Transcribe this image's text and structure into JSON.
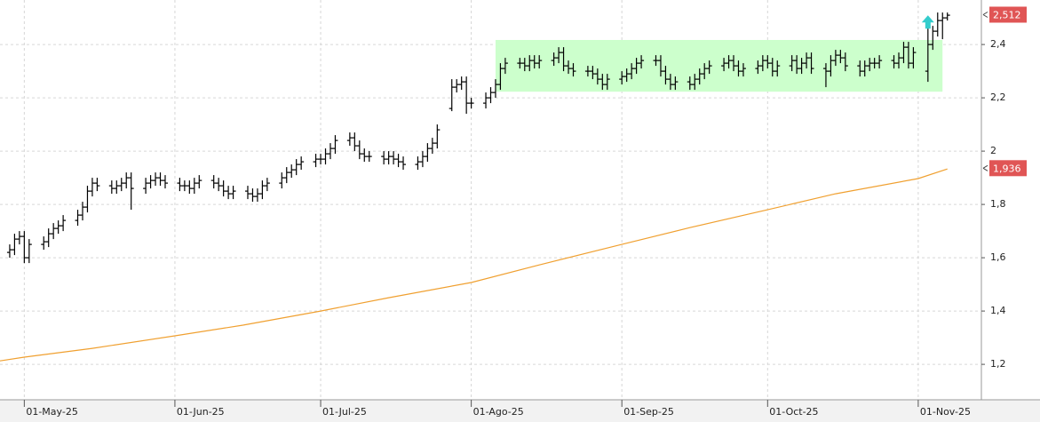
{
  "chart_data": {
    "type": "ohlc",
    "color": "#000000",
    "grid": true,
    "xlim": [
      "2025-04-26",
      "2025-11-14"
    ],
    "xticks": [
      {
        "value": "2025-05-01",
        "label": "01-May-25"
      },
      {
        "value": "2025-06-01",
        "label": "01-Jun-25"
      },
      {
        "value": "2025-07-01",
        "label": "01-Jul-25"
      },
      {
        "value": "2025-08-01",
        "label": "01-Ago-25"
      },
      {
        "value": "2025-09-01",
        "label": "01-Sep-25"
      },
      {
        "value": "2025-10-01",
        "label": "01-Oct-25"
      },
      {
        "value": "2025-11-01",
        "label": "01-Nov-25"
      }
    ],
    "ylim": [
      1.067,
      2.567
    ],
    "yticks": [
      {
        "value": 1.2,
        "label": "1,2"
      },
      {
        "value": 1.4,
        "label": "1,4"
      },
      {
        "value": 1.6,
        "label": "1,6"
      },
      {
        "value": 1.8,
        "label": "1,8"
      },
      2,
      {
        "value": 2.2,
        "label": "2,2"
      },
      {
        "value": 2.4,
        "label": "2,4"
      }
    ],
    "x": [
      "2025-04-28",
      "2025-04-29",
      "2025-04-30",
      "2025-05-01",
      "2025-05-02",
      "2025-05-05",
      "2025-05-06",
      "2025-05-07",
      "2025-05-08",
      "2025-05-09",
      "2025-05-12",
      "2025-05-13",
      "2025-05-14",
      "2025-05-15",
      "2025-05-16",
      "2025-05-19",
      "2025-05-20",
      "2025-05-21",
      "2025-05-22",
      "2025-05-23",
      "2025-05-26",
      "2025-05-27",
      "2025-05-28",
      "2025-05-29",
      "2025-05-30",
      "2025-06-02",
      "2025-06-03",
      "2025-06-04",
      "2025-06-05",
      "2025-06-06",
      "2025-06-09",
      "2025-06-10",
      "2025-06-11",
      "2025-06-12",
      "2025-06-13",
      "2025-06-16",
      "2025-06-17",
      "2025-06-18",
      "2025-06-19",
      "2025-06-20",
      "2025-06-23",
      "2025-06-24",
      "2025-06-25",
      "2025-06-26",
      "2025-06-27",
      "2025-06-30",
      "2025-07-01",
      "2025-07-02",
      "2025-07-03",
      "2025-07-04",
      "2025-07-07",
      "2025-07-08",
      "2025-07-09",
      "2025-07-10",
      "2025-07-11",
      "2025-07-14",
      "2025-07-15",
      "2025-07-16",
      "2025-07-17",
      "2025-07-18",
      "2025-07-21",
      "2025-07-22",
      "2025-07-23",
      "2025-07-24",
      "2025-07-25",
      "2025-07-28",
      "2025-07-29",
      "2025-07-30",
      "2025-07-31",
      "2025-08-01",
      "2025-08-04",
      "2025-08-05",
      "2025-08-06",
      "2025-08-07",
      "2025-08-08",
      "2025-08-11",
      "2025-08-12",
      "2025-08-13",
      "2025-08-14",
      "2025-08-15",
      "2025-08-18",
      "2025-08-19",
      "2025-08-20",
      "2025-08-21",
      "2025-08-22",
      "2025-08-25",
      "2025-08-26",
      "2025-08-27",
      "2025-08-28",
      "2025-08-29",
      "2025-09-01",
      "2025-09-02",
      "2025-09-03",
      "2025-09-04",
      "2025-09-05",
      "2025-09-08",
      "2025-09-09",
      "2025-09-10",
      "2025-09-11",
      "2025-09-12",
      "2025-09-15",
      "2025-09-16",
      "2025-09-17",
      "2025-09-18",
      "2025-09-19",
      "2025-09-22",
      "2025-09-23",
      "2025-09-24",
      "2025-09-25",
      "2025-09-26",
      "2025-09-29",
      "2025-09-30",
      "2025-10-01",
      "2025-10-02",
      "2025-10-03",
      "2025-10-06",
      "2025-10-07",
      "2025-10-08",
      "2025-10-09",
      "2025-10-10",
      "2025-10-13",
      "2025-10-14",
      "2025-10-15",
      "2025-10-16",
      "2025-10-17",
      "2025-10-20",
      "2025-10-21",
      "2025-10-22",
      "2025-10-23",
      "2025-10-24",
      "2025-10-27",
      "2025-10-28",
      "2025-10-29",
      "2025-10-30",
      "2025-10-31",
      "2025-11-03",
      "2025-11-04",
      "2025-11-05",
      "2025-11-06",
      "2025-11-07"
    ],
    "open": [
      1.62,
      1.63,
      1.67,
      1.68,
      1.6,
      1.65,
      1.66,
      1.69,
      1.71,
      1.72,
      1.74,
      1.76,
      1.79,
      1.85,
      1.88,
      1.87,
      1.86,
      1.87,
      1.88,
      1.9,
      1.86,
      1.88,
      1.89,
      1.9,
      1.89,
      1.88,
      1.87,
      1.87,
      1.86,
      1.88,
      1.89,
      1.88,
      1.87,
      1.85,
      1.84,
      1.85,
      1.84,
      1.83,
      1.84,
      1.87,
      1.88,
      1.9,
      1.92,
      1.93,
      1.95,
      1.96,
      1.97,
      1.97,
      1.99,
      2.01,
      2.04,
      2.05,
      2.02,
      1.99,
      1.98,
      1.98,
      1.97,
      1.98,
      1.97,
      1.96,
      1.95,
      1.96,
      1.98,
      2.01,
      2.03,
      2.16,
      2.24,
      2.25,
      2.26,
      2.18,
      2.18,
      2.2,
      2.22,
      2.25,
      2.31,
      2.33,
      2.33,
      2.32,
      2.34,
      2.33,
      2.34,
      2.35,
      2.37,
      2.32,
      2.31,
      2.3,
      2.3,
      2.29,
      2.27,
      2.25,
      2.27,
      2.28,
      2.29,
      2.31,
      2.33,
      2.34,
      2.34,
      2.3,
      2.27,
      2.25,
      2.26,
      2.25,
      2.27,
      2.29,
      2.31,
      2.32,
      2.33,
      2.34,
      2.32,
      2.3,
      2.31,
      2.32,
      2.34,
      2.33,
      2.3,
      2.32,
      2.34,
      2.31,
      2.33,
      2.35,
      2.31,
      2.3,
      2.34,
      2.36,
      2.35,
      2.32,
      2.3,
      2.32,
      2.33,
      2.33,
      2.34,
      2.33,
      2.35,
      2.39,
      2.33,
      2.3,
      2.4,
      2.45,
      2.49,
      2.5
    ],
    "high": [
      1.65,
      1.69,
      1.7,
      1.7,
      1.67,
      1.68,
      1.71,
      1.73,
      1.74,
      1.76,
      1.78,
      1.81,
      1.87,
      1.9,
      1.9,
      1.89,
      1.89,
      1.9,
      1.92,
      1.92,
      1.9,
      1.91,
      1.92,
      1.92,
      1.91,
      1.9,
      1.89,
      1.89,
      1.9,
      1.91,
      1.91,
      1.9,
      1.89,
      1.87,
      1.87,
      1.87,
      1.86,
      1.86,
      1.89,
      1.9,
      1.92,
      1.94,
      1.95,
      1.97,
      1.98,
      1.99,
      1.99,
      2.01,
      2.03,
      2.06,
      2.07,
      2.07,
      2.04,
      2.01,
      2.0,
      2.0,
      2.0,
      2.0,
      1.99,
      1.98,
      1.98,
      2.0,
      2.03,
      2.05,
      2.1,
      2.27,
      2.27,
      2.28,
      2.28,
      2.2,
      2.22,
      2.24,
      2.27,
      2.33,
      2.35,
      2.35,
      2.35,
      2.36,
      2.36,
      2.36,
      2.37,
      2.39,
      2.39,
      2.34,
      2.33,
      2.32,
      2.32,
      2.31,
      2.29,
      2.29,
      2.3,
      2.31,
      2.33,
      2.35,
      2.36,
      2.36,
      2.36,
      2.32,
      2.29,
      2.28,
      2.28,
      2.29,
      2.31,
      2.33,
      2.34,
      2.35,
      2.36,
      2.36,
      2.34,
      2.33,
      2.34,
      2.36,
      2.36,
      2.35,
      2.34,
      2.36,
      2.36,
      2.35,
      2.37,
      2.37,
      2.33,
      2.36,
      2.38,
      2.38,
      2.37,
      2.34,
      2.34,
      2.35,
      2.35,
      2.36,
      2.36,
      2.37,
      2.41,
      2.41,
      2.39,
      2.46,
      2.47,
      2.52,
      2.52,
      2.52
    ],
    "low": [
      1.6,
      1.61,
      1.65,
      1.58,
      1.58,
      1.63,
      1.64,
      1.67,
      1.69,
      1.7,
      1.72,
      1.74,
      1.77,
      1.83,
      1.85,
      1.84,
      1.84,
      1.85,
      1.86,
      1.78,
      1.84,
      1.86,
      1.87,
      1.87,
      1.86,
      1.85,
      1.85,
      1.84,
      1.84,
      1.86,
      1.86,
      1.85,
      1.83,
      1.82,
      1.82,
      1.82,
      1.81,
      1.81,
      1.82,
      1.85,
      1.86,
      1.88,
      1.9,
      1.91,
      1.93,
      1.94,
      1.95,
      1.95,
      1.97,
      1.99,
      2.02,
      2.0,
      1.97,
      1.96,
      1.96,
      1.95,
      1.95,
      1.95,
      1.94,
      1.93,
      1.93,
      1.94,
      1.96,
      1.99,
      2.01,
      2.15,
      2.22,
      2.23,
      2.14,
      2.16,
      2.16,
      2.18,
      2.2,
      2.23,
      2.29,
      2.31,
      2.3,
      2.3,
      2.31,
      2.31,
      2.32,
      2.33,
      2.3,
      2.29,
      2.28,
      2.28,
      2.27,
      2.25,
      2.23,
      2.23,
      2.25,
      2.26,
      2.27,
      2.29,
      2.31,
      2.32,
      2.28,
      2.25,
      2.23,
      2.23,
      2.23,
      2.23,
      2.25,
      2.27,
      2.29,
      2.3,
      2.31,
      2.3,
      2.28,
      2.28,
      2.29,
      2.3,
      2.31,
      2.28,
      2.28,
      2.3,
      2.29,
      2.29,
      2.31,
      2.29,
      2.24,
      2.28,
      2.32,
      2.33,
      2.3,
      2.28,
      2.28,
      2.3,
      2.31,
      2.31,
      2.31,
      2.31,
      2.33,
      2.31,
      2.31,
      2.26,
      2.38,
      2.43,
      2.42,
      2.49
    ],
    "close": [
      1.63,
      1.67,
      1.68,
      1.6,
      1.65,
      1.66,
      1.69,
      1.71,
      1.72,
      1.74,
      1.76,
      1.79,
      1.85,
      1.88,
      1.87,
      1.86,
      1.87,
      1.88,
      1.9,
      1.86,
      1.88,
      1.89,
      1.9,
      1.89,
      1.88,
      1.87,
      1.87,
      1.86,
      1.88,
      1.89,
      1.88,
      1.87,
      1.85,
      1.84,
      1.85,
      1.84,
      1.83,
      1.84,
      1.87,
      1.88,
      1.9,
      1.92,
      1.93,
      1.95,
      1.96,
      1.97,
      1.97,
      1.99,
      2.01,
      2.04,
      2.05,
      2.02,
      1.99,
      1.98,
      1.98,
      1.97,
      1.98,
      1.97,
      1.96,
      1.95,
      1.96,
      1.98,
      2.01,
      2.03,
      2.08,
      2.24,
      2.25,
      2.26,
      2.18,
      2.18,
      2.2,
      2.22,
      2.25,
      2.31,
      2.33,
      2.33,
      2.32,
      2.34,
      2.33,
      2.34,
      2.35,
      2.37,
      2.32,
      2.31,
      2.3,
      2.3,
      2.29,
      2.27,
      2.25,
      2.27,
      2.28,
      2.29,
      2.31,
      2.33,
      2.34,
      2.34,
      2.3,
      2.27,
      2.25,
      2.26,
      2.25,
      2.27,
      2.29,
      2.31,
      2.32,
      2.33,
      2.34,
      2.32,
      2.3,
      2.31,
      2.32,
      2.34,
      2.33,
      2.3,
      2.32,
      2.34,
      2.31,
      2.33,
      2.35,
      2.31,
      2.3,
      2.34,
      2.36,
      2.35,
      2.32,
      2.3,
      2.32,
      2.33,
      2.33,
      2.34,
      2.33,
      2.35,
      2.39,
      2.33,
      2.37,
      2.4,
      2.45,
      2.49,
      2.5,
      2.51
    ],
    "moving_average": {
      "color": "#f0a030",
      "x": [
        "2025-04-26",
        "2025-05-01",
        "2025-05-15",
        "2025-06-01",
        "2025-06-15",
        "2025-07-01",
        "2025-07-15",
        "2025-08-01",
        "2025-08-15",
        "2025-09-01",
        "2025-09-15",
        "2025-10-01",
        "2025-10-15",
        "2025-11-01",
        "2025-11-07"
      ],
      "values": [
        1.213,
        1.227,
        1.26,
        1.307,
        1.347,
        1.4,
        1.45,
        1.507,
        1.573,
        1.65,
        1.713,
        1.78,
        1.84,
        1.897,
        1.933
      ]
    },
    "zone": {
      "color": "#ccffcc",
      "x": [
        "2025-08-06",
        "2025-11-06"
      ],
      "y": [
        2.223,
        2.417
      ]
    },
    "signal": {
      "color": "#33cccc",
      "x": "2025-11-03",
      "y": 2.483
    },
    "last_price": {
      "value": 2.512,
      "label": "2,512",
      "color": "#e05555"
    },
    "ma_last": {
      "value": 1.936,
      "label": "1,936",
      "color": "#e05555"
    }
  }
}
